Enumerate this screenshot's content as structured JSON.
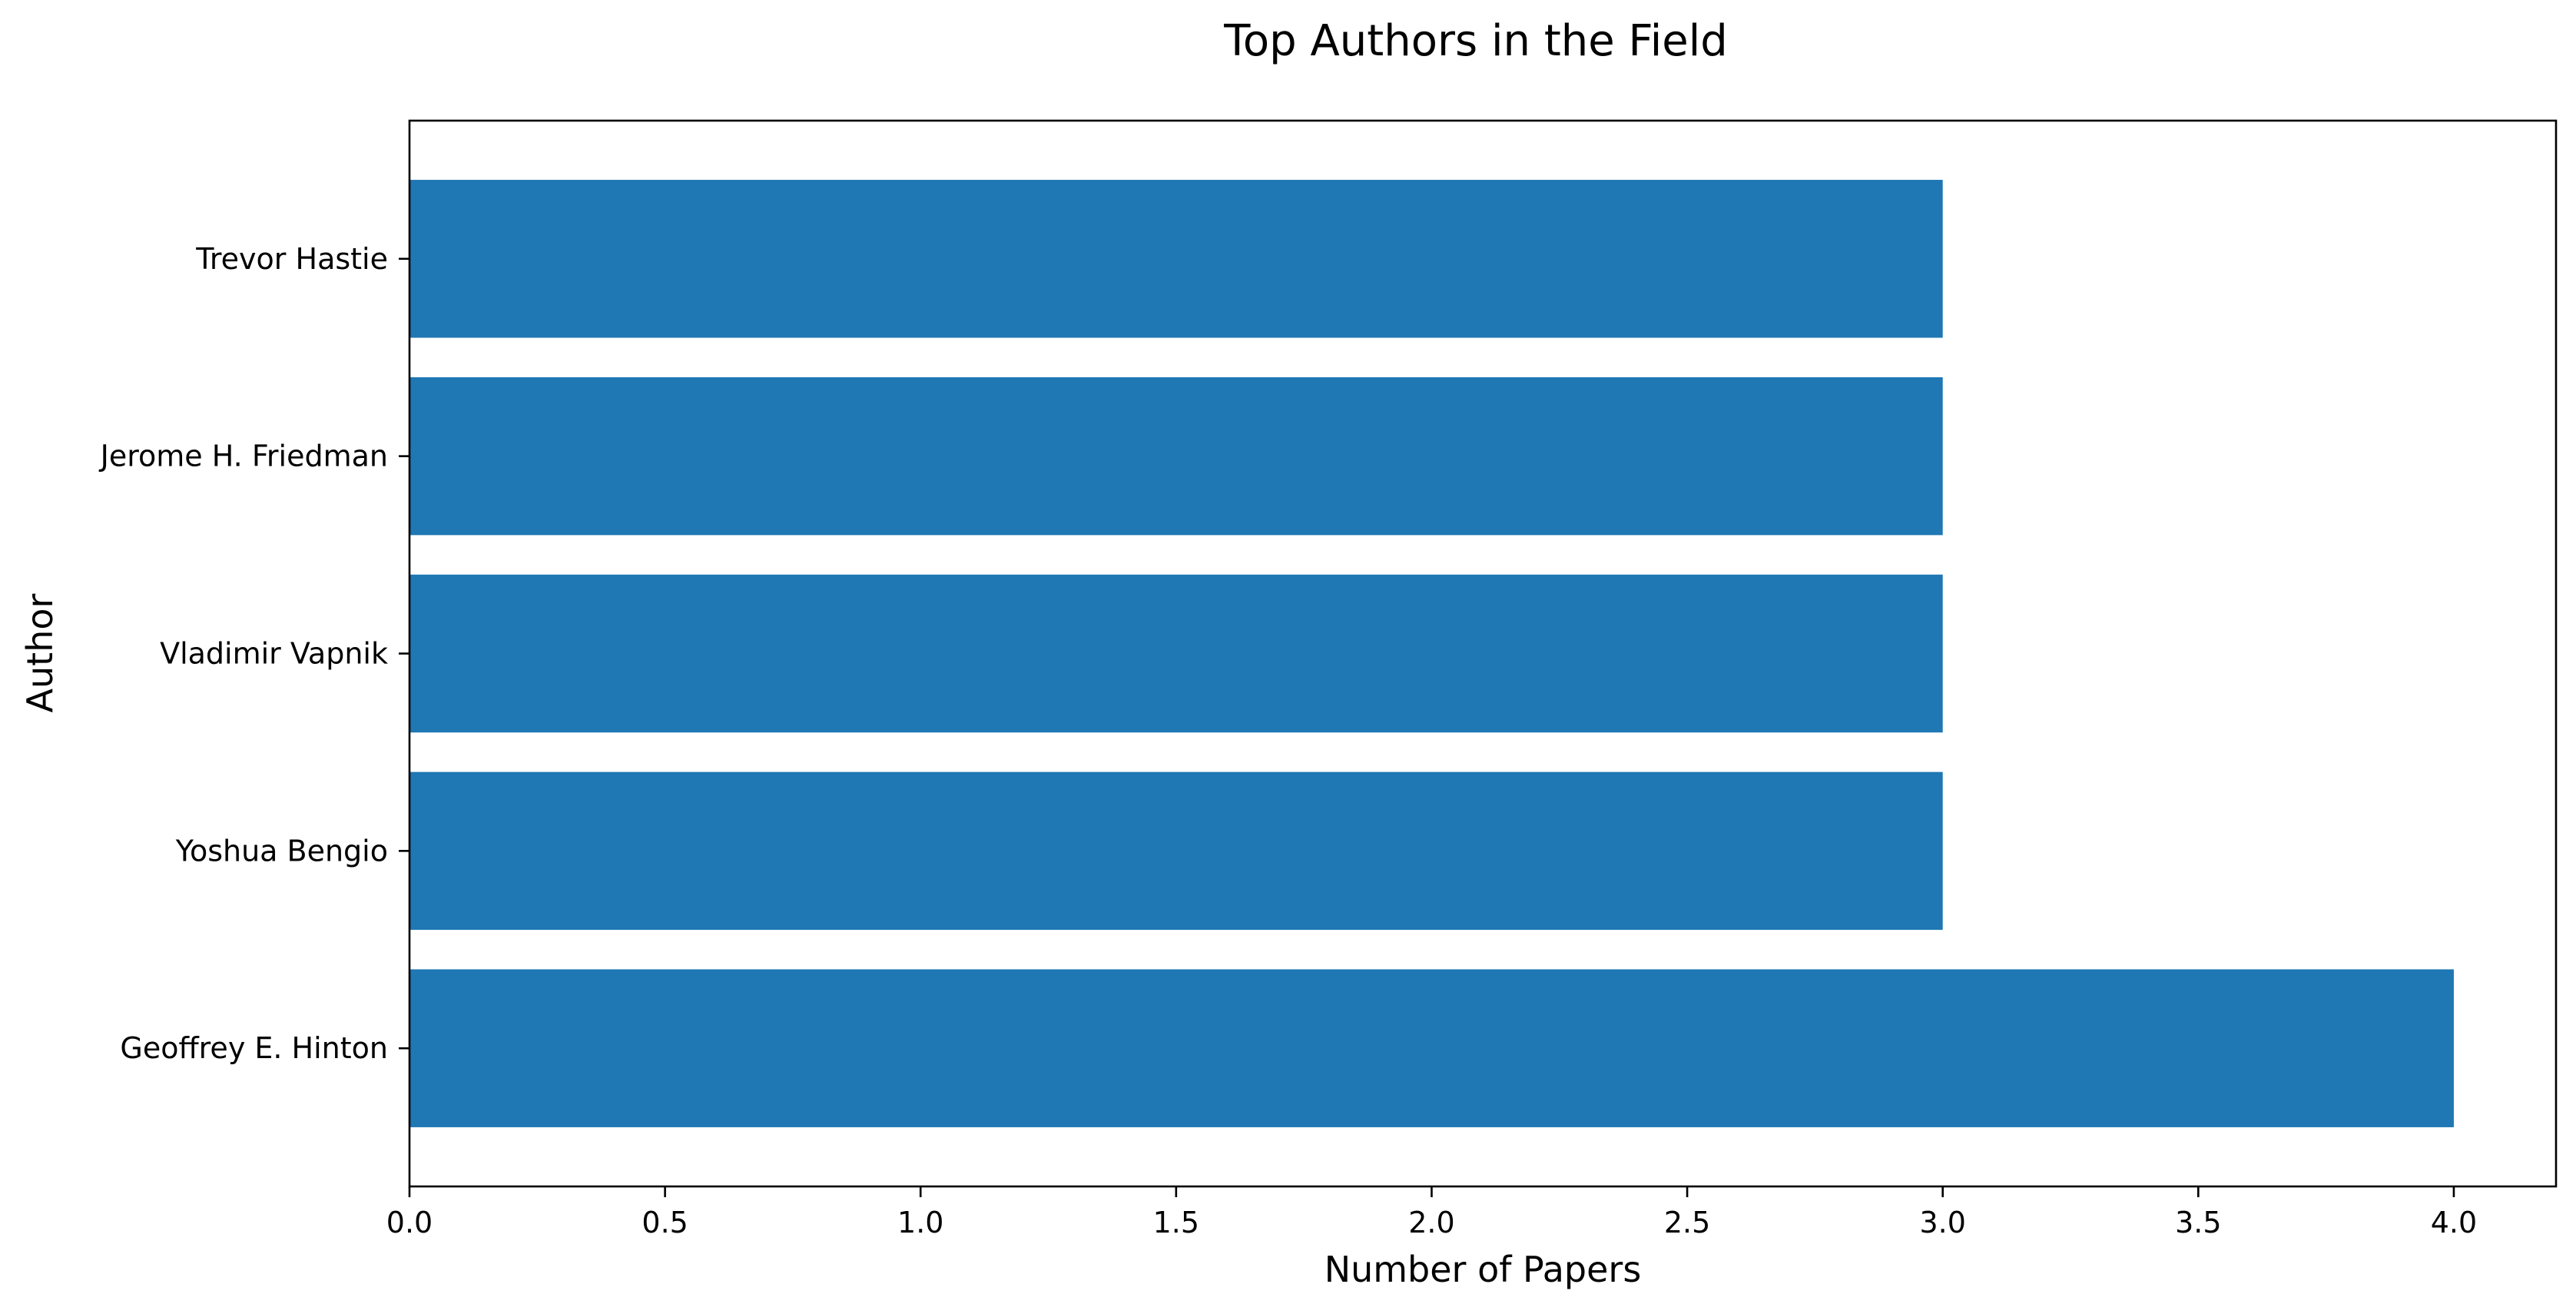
{
  "chart_data": {
    "type": "bar",
    "orientation": "horizontal",
    "title": "Top Authors in the Field",
    "xlabel": "Number of Papers",
    "ylabel": "Author",
    "categories": [
      "Geoffrey E. Hinton",
      "Yoshua Bengio",
      "Vladimir Vapnik",
      "Jerome H. Friedman",
      "Trevor Hastie"
    ],
    "values": [
      4,
      3,
      3,
      3,
      3
    ],
    "xlim": [
      0,
      4.2
    ],
    "xticks": [
      "0.0",
      "0.5",
      "1.0",
      "1.5",
      "2.0",
      "2.5",
      "3.0",
      "3.5",
      "4.0"
    ],
    "bar_color": "#1f77b4",
    "grid": false,
    "legend": "none"
  }
}
